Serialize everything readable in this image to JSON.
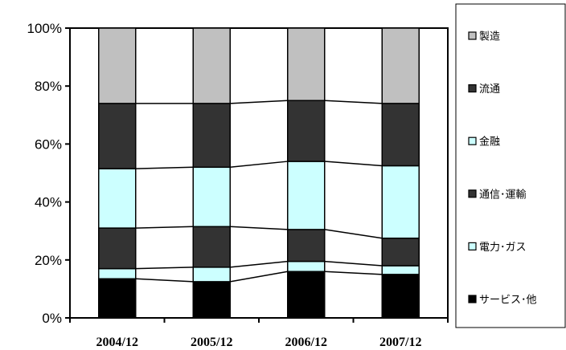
{
  "chart_data": {
    "type": "bar",
    "stacked": true,
    "categories": [
      "2004/12",
      "2005/12",
      "2006/12",
      "2007/12"
    ],
    "ylim": [
      0,
      100
    ],
    "yticks": [
      "0%",
      "20%",
      "40%",
      "60%",
      "80%",
      "100%"
    ],
    "legend_position": "right",
    "series_lines": true,
    "series": [
      {
        "name": "サービス･他",
        "color": "#000000",
        "values": [
          13.5,
          12.5,
          16,
          15
        ]
      },
      {
        "name": "電力･ガス",
        "color": "#ccffff",
        "values": [
          3.5,
          5,
          3.5,
          3
        ]
      },
      {
        "name": "通信･運輸",
        "color": "#333333",
        "values": [
          14,
          14,
          11,
          9.5
        ]
      },
      {
        "name": "金融",
        "color": "#ccffff",
        "values": [
          20.5,
          20.5,
          23.5,
          25
        ]
      },
      {
        "name": "流通",
        "color": "#333333",
        "values": [
          22.5,
          22,
          21,
          21.5
        ]
      },
      {
        "name": "製造",
        "color": "#c0c0c0",
        "values": [
          26,
          26,
          25,
          26
        ]
      }
    ]
  }
}
